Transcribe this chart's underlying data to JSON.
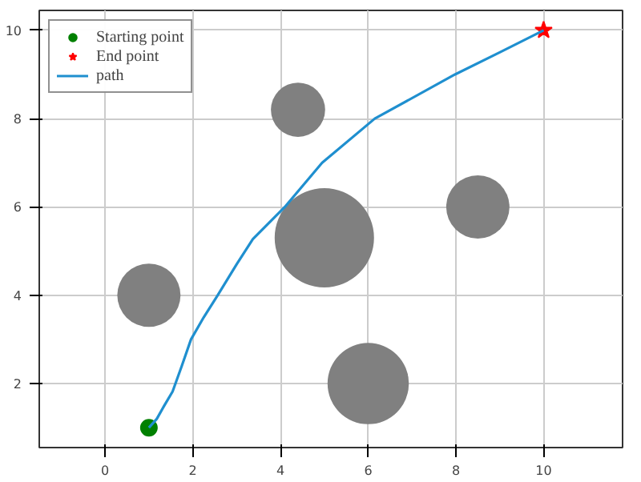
{
  "chart_data": {
    "type": "scatter",
    "xlim": [
      -1.5,
      11.8
    ],
    "ylim": [
      0.55,
      10.45
    ],
    "xticks": [
      0,
      2,
      4,
      6,
      8,
      10
    ],
    "yticks": [
      2,
      4,
      6,
      8,
      10
    ],
    "grid": true,
    "legend": "top left",
    "series": [
      {
        "type": "bubble",
        "color": "#808080",
        "x": [
          1,
          4.4,
          5,
          8.5,
          6
        ],
        "values": [
          4,
          8.2,
          5.3,
          6,
          2
        ],
        "sizes": [
          0.405,
          0.298,
          1,
          0.405,
          0.669
        ]
      },
      {
        "name": "Starting point",
        "color": "#008000",
        "marker": "circle",
        "x": [
          1
        ],
        "values": [
          1
        ]
      },
      {
        "name": "End point",
        "color": "#ff0000",
        "marker": "star",
        "x": [
          10
        ],
        "values": [
          10
        ]
      },
      {
        "type": "line",
        "name": "path",
        "color": "#1f8fcf",
        "line_style": "solid",
        "x": [
          1,
          1.18,
          1.35,
          1.54,
          1.75,
          1.96,
          2.25,
          2.57,
          3,
          3.37,
          4.1,
          4.95,
          6.15,
          7.98,
          9,
          10
        ],
        "values": [
          1,
          1.2,
          1.5,
          1.82,
          2.4,
          3,
          3.5,
          4,
          4.7,
          5.27,
          6,
          7,
          8,
          9,
          9.5,
          10
        ]
      }
    ]
  }
}
